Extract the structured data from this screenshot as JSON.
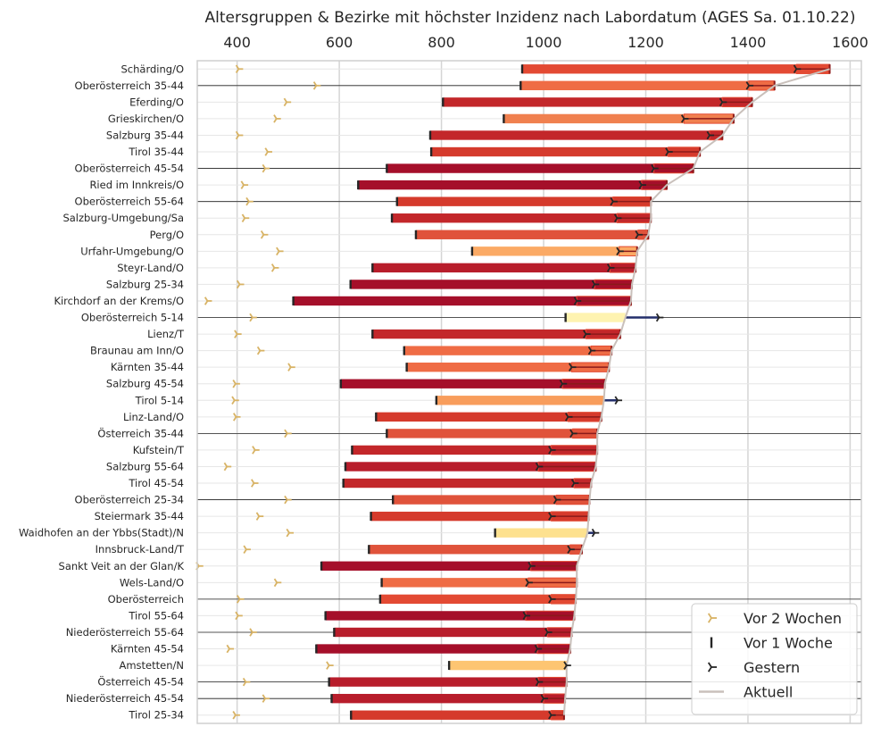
{
  "chart_data": {
    "type": "bar",
    "orientation": "horizontal",
    "title": "Altersgruppen & Bezirke mit höchster Inzidenz nach Labordatum (AGES Sa. 01.10.22)",
    "xlabel": "",
    "ylabel": "",
    "xlim": [
      322,
      1622
    ],
    "x_ticks": [
      400,
      600,
      800,
      1000,
      1200,
      1400,
      1600
    ],
    "x_axis_position": "top",
    "grid": true,
    "legend_position": "bottom-right",
    "legend": [
      {
        "key": "two_weeks",
        "label": "Vor 2 Wochen",
        "marker": "tri-right",
        "color": "#d8b365"
      },
      {
        "key": "one_week",
        "label": "Vor 1 Woche",
        "marker": "vline",
        "color": "#262626"
      },
      {
        "key": "yesterday",
        "label": "Gestern",
        "marker": "tri-right",
        "color": "#262626"
      },
      {
        "key": "current",
        "label": "Aktuell",
        "marker": "line",
        "color": "#c9c0bb"
      }
    ],
    "rows": [
      {
        "label": "Schärding/O",
        "two_weeks": 403,
        "one_week": 958,
        "yesterday": 1495,
        "current": 1560,
        "color": "#e34a33"
      },
      {
        "label": "Oberösterreich 35-44",
        "two_weeks": 555,
        "one_week": 955,
        "yesterday": 1402,
        "current": 1452,
        "color": "#ef6c45"
      },
      {
        "label": "Eferding/O",
        "two_weeks": 497,
        "one_week": 803,
        "yesterday": 1350,
        "current": 1408,
        "color": "#c3272a"
      },
      {
        "label": "Grieskirchen/O",
        "two_weeks": 477,
        "one_week": 922,
        "yesterday": 1275,
        "current": 1372,
        "color": "#f0804f"
      },
      {
        "label": "Salzburg 35-44",
        "two_weeks": 403,
        "one_week": 778,
        "yesterday": 1325,
        "current": 1350,
        "color": "#c3272a"
      },
      {
        "label": "Tirol 35-44",
        "two_weeks": 460,
        "one_week": 780,
        "yesterday": 1244,
        "current": 1306,
        "color": "#d53a2c"
      },
      {
        "label": "Oberösterreich 45-54",
        "two_weeks": 455,
        "one_week": 693,
        "yesterday": 1216,
        "current": 1293,
        "color": "#a50f2a"
      },
      {
        "label": "Ried im Innkreis/O",
        "two_weeks": 413,
        "one_week": 637,
        "yesterday": 1192,
        "current": 1241,
        "color": "#a50f2a"
      },
      {
        "label": "Oberösterreich 55-64",
        "two_weeks": 423,
        "one_week": 713,
        "yesterday": 1136,
        "current": 1210,
        "color": "#d53a2c"
      },
      {
        "label": "Salzburg-Umgebung/Sa",
        "two_weeks": 415,
        "one_week": 703,
        "yesterday": 1144,
        "current": 1210,
        "color": "#c3272a"
      },
      {
        "label": "Perg/O",
        "two_weeks": 452,
        "one_week": 750,
        "yesterday": 1185,
        "current": 1205,
        "color": "#e0533b"
      },
      {
        "label": "Urfahr-Umgebung/O",
        "two_weeks": 482,
        "one_week": 860,
        "yesterday": 1148,
        "current": 1183,
        "color": "#fbaa65"
      },
      {
        "label": "Steyr-Land/O",
        "two_weeks": 473,
        "one_week": 665,
        "yesterday": 1130,
        "current": 1180,
        "color": "#b81d2b"
      },
      {
        "label": "Salzburg 25-34",
        "two_weeks": 405,
        "one_week": 622,
        "yesterday": 1100,
        "current": 1173,
        "color": "#a50f2a"
      },
      {
        "label": "Kirchdorf an der Krems/O",
        "two_weeks": 342,
        "one_week": 510,
        "yesterday": 1065,
        "current": 1171,
        "color": "#a50f2a"
      },
      {
        "label": "Oberösterreich 5-14",
        "two_weeks": 430,
        "one_week": 1043,
        "yesterday": 1226,
        "current": 1160,
        "color": "#fef3b0"
      },
      {
        "label": "Lienz/T",
        "two_weeks": 400,
        "one_week": 665,
        "yesterday": 1083,
        "current": 1150,
        "color": "#c3272a"
      },
      {
        "label": "Braunau am Inn/O",
        "two_weeks": 445,
        "one_week": 727,
        "yesterday": 1093,
        "current": 1133,
        "color": "#ef6c45"
      },
      {
        "label": "Kärnten 35-44",
        "two_weeks": 505,
        "one_week": 732,
        "yesterday": 1055,
        "current": 1128,
        "color": "#ef6c45"
      },
      {
        "label": "Salzburg 45-54",
        "two_weeks": 397,
        "one_week": 603,
        "yesterday": 1037,
        "current": 1120,
        "color": "#a50f2a"
      },
      {
        "label": "Tirol 5-14",
        "two_weeks": 395,
        "one_week": 790,
        "yesterday": 1145,
        "current": 1118,
        "color": "#f89d5c"
      },
      {
        "label": "Linz-Land/O",
        "two_weeks": 398,
        "one_week": 672,
        "yesterday": 1048,
        "current": 1113,
        "color": "#d53a2c"
      },
      {
        "label": "Österreich 35-44",
        "two_weeks": 498,
        "one_week": 693,
        "yesterday": 1057,
        "current": 1105,
        "color": "#e0533b"
      },
      {
        "label": "Kufstein/T",
        "two_weeks": 435,
        "one_week": 625,
        "yesterday": 1015,
        "current": 1105,
        "color": "#c3272a"
      },
      {
        "label": "Salzburg 55-64",
        "two_weeks": 380,
        "one_week": 612,
        "yesterday": 990,
        "current": 1102,
        "color": "#b81d2b"
      },
      {
        "label": "Tirol 45-54",
        "two_weeks": 433,
        "one_week": 608,
        "yesterday": 1060,
        "current": 1093,
        "color": "#c3272a"
      },
      {
        "label": "Oberösterreich 25-34",
        "two_weeks": 498,
        "one_week": 705,
        "yesterday": 1025,
        "current": 1090,
        "color": "#e0533b"
      },
      {
        "label": "Steiermark 35-44",
        "two_weeks": 443,
        "one_week": 662,
        "yesterday": 1015,
        "current": 1088,
        "color": "#d53a2c"
      },
      {
        "label": "Waidhofen an der Ybbs(Stadt)/N",
        "two_weeks": 502,
        "one_week": 905,
        "yesterday": 1100,
        "current": 1086,
        "color": "#fde18f"
      },
      {
        "label": "Innsbruck-Land/T",
        "two_weeks": 418,
        "one_week": 658,
        "yesterday": 1052,
        "current": 1075,
        "color": "#e0533b"
      },
      {
        "label": "Sankt Veit an der Glan/K",
        "two_weeks": 325,
        "one_week": 565,
        "yesterday": 975,
        "current": 1065,
        "color": "#a50f2a"
      },
      {
        "label": "Wels-Land/O",
        "two_weeks": 478,
        "one_week": 683,
        "yesterday": 970,
        "current": 1065,
        "color": "#ef6c45"
      },
      {
        "label": "Oberösterreich",
        "two_weeks": 405,
        "one_week": 680,
        "yesterday": 1015,
        "current": 1063,
        "color": "#e34a33"
      },
      {
        "label": "Tirol 55-64",
        "two_weeks": 402,
        "one_week": 573,
        "yesterday": 965,
        "current": 1060,
        "color": "#a50f2a"
      },
      {
        "label": "Niederösterreich 55-64",
        "two_weeks": 430,
        "one_week": 590,
        "yesterday": 1008,
        "current": 1055,
        "color": "#b81d2b"
      },
      {
        "label": "Kärnten 45-54",
        "two_weeks": 385,
        "one_week": 555,
        "yesterday": 988,
        "current": 1052,
        "color": "#a50f2a"
      },
      {
        "label": "Amstetten/N",
        "two_weeks": 580,
        "one_week": 815,
        "yesterday": 1045,
        "current": 1045,
        "color": "#fdc572"
      },
      {
        "label": "Österreich 45-54",
        "two_weeks": 417,
        "one_week": 580,
        "yesterday": 990,
        "current": 1045,
        "color": "#b81d2b"
      },
      {
        "label": "Niederösterreich 45-54",
        "two_weeks": 455,
        "one_week": 585,
        "yesterday": 1000,
        "current": 1042,
        "color": "#b81d2b"
      },
      {
        "label": "Tirol 25-34",
        "two_weeks": 397,
        "one_week": 623,
        "yesterday": 1015,
        "current": 1040,
        "color": "#d53a2c"
      }
    ]
  }
}
